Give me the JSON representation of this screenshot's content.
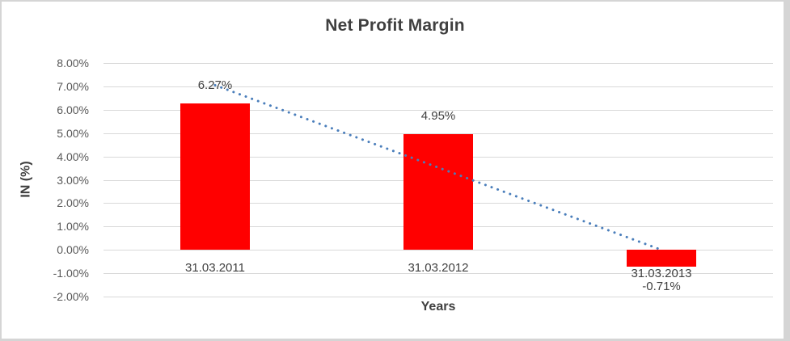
{
  "window": {
    "background_color": "#ffffff",
    "border_color": "#d5d5d5"
  },
  "chart": {
    "title": "Net Profit Margin",
    "y_axis": {
      "title": "IN (%)",
      "tick_labels": [
        "8.00%",
        "7.00%",
        "6.00%",
        "5.00%",
        "4.00%",
        "3.00%",
        "2.00%",
        "1.00%",
        "0.00%",
        "-1.00%",
        "-2.00%"
      ]
    },
    "x_axis": {
      "title": "Years",
      "category_labels": [
        "31.03.2011",
        "31.03.2012",
        "31.03.2013"
      ]
    },
    "data_labels": [
      "6.27%",
      "4.95%",
      "-0.71%"
    ]
  },
  "chart_data": {
    "type": "bar",
    "title": "Net Profit Margin",
    "xlabel": "Years",
    "ylabel": "IN (%)",
    "categories": [
      "31.03.2011",
      "31.03.2012",
      "31.03.2013"
    ],
    "values": [
      6.27,
      4.95,
      -0.71
    ],
    "value_labels": [
      "6.27%",
      "4.95%",
      "-0.71%"
    ],
    "unit": "%",
    "ylim": [
      -2,
      8
    ],
    "y_tick_step": 1,
    "grid": true,
    "legend": false,
    "bar_color": "#ff0000",
    "label_color": "#404040",
    "tick_color": "#595959",
    "title_color": "#3f3f3f",
    "gridline_color": "#d9d9d9",
    "trendline": {
      "type": "linear",
      "style": "dotted",
      "color": "#4a7ebb",
      "points": [
        {
          "category_index": 0,
          "value": 7.05
        },
        {
          "category_index": 2,
          "value": 0.0
        }
      ]
    }
  }
}
